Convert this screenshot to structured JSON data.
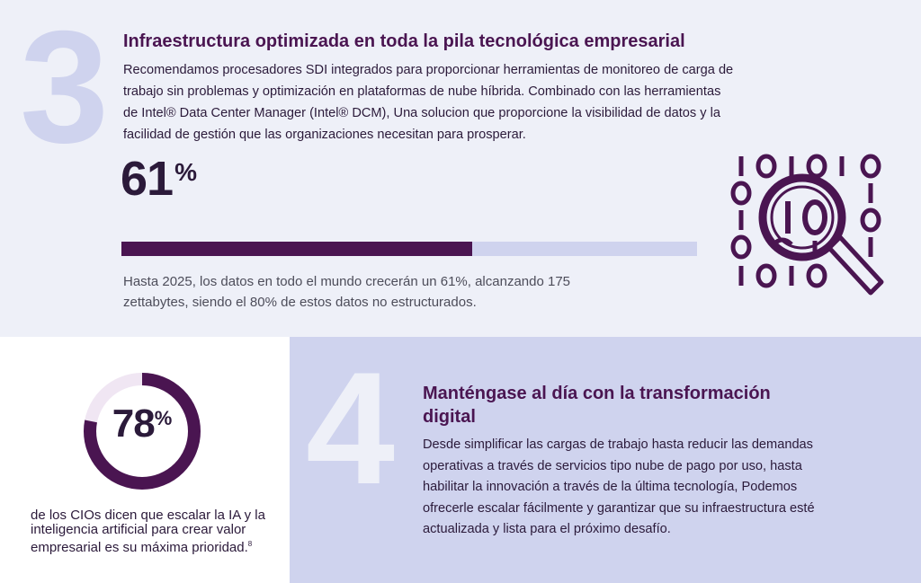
{
  "section3": {
    "number": "3",
    "title": "Infraestructura optimizada en toda la pila tecnológica empresarial",
    "body": "Recomendamos procesadores SDI integrados para proporcionar herramientas de monitoreo de carga de trabajo sin problemas y optimización en plataformas de nube híbrida. Combinado con las herramientas de Intel® Data Center Manager (Intel® DCM), Una solucion que proporcione la visibilidad de datos y la facilidad de gestión que las organizaciones necesitan para prosperar.",
    "stat": {
      "value": "61",
      "unit": "%",
      "fraction": 0.61,
      "caption": "Hasta 2025, los datos en todo el mundo crecerán un 61%, alcanzando 175 zettabytes, siendo el 80% de estos datos no estructurados."
    },
    "binary_rows": [
      "101010",
      "0    1",
      "1  0",
      "0  1",
      "1010"
    ],
    "icon": "magnifying-glass-binary-icon"
  },
  "section_cio": {
    "stat": {
      "value": "78",
      "unit": "%",
      "fraction": 0.78
    },
    "caption": "de los CIOs dicen que escalar la IA y la inteligencia artificial para crear valor empresarial es su máxima prioridad.",
    "footnote": "8"
  },
  "section4": {
    "number": "4",
    "title": "Manténgase al día con la transformación digital",
    "body": "Desde simplificar las cargas de trabajo hasta reducir las demandas operativas a través de servicios tipo nube de pago por uso, hasta habilitar la innovación a través de la última tecnología, Podemos ofrecerle escalar fácilmente y garantizar que su infraestructura esté actualizada y lista para el próximo desafío."
  },
  "colors": {
    "accent": "#4a1551",
    "light_lavender": "#cfd3ee",
    "pale_background": "#eef0f8",
    "donut_track": "#f0e6f3"
  }
}
